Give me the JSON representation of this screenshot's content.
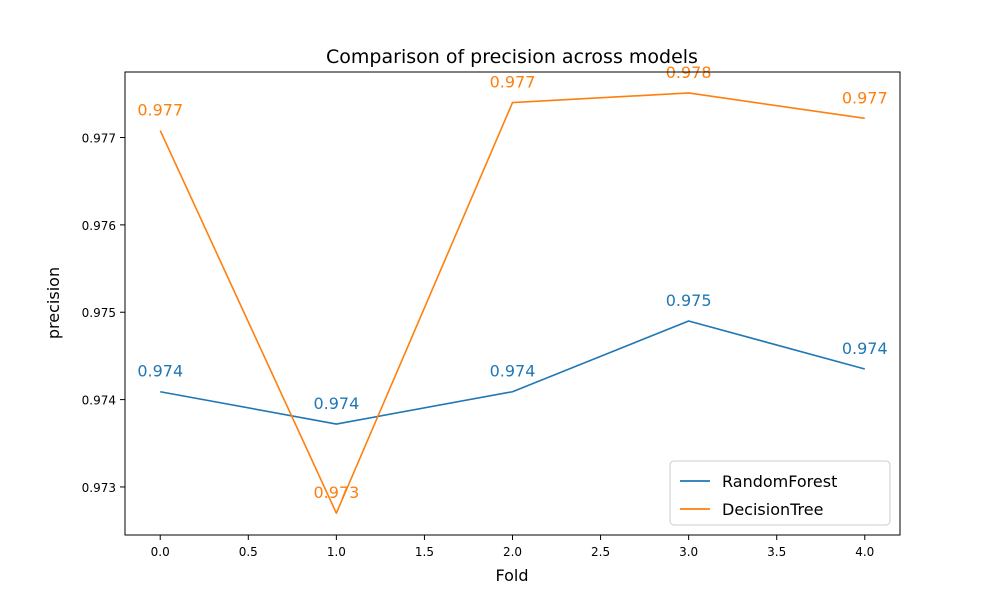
{
  "chart_data": {
    "type": "line",
    "title": "Comparison of precision across models",
    "xlabel": "Fold",
    "ylabel": "precision",
    "xlim": [
      -0.2,
      4.2
    ],
    "ylim": [
      0.97245,
      0.97775
    ],
    "x_ticks": [
      0.0,
      0.5,
      1.0,
      1.5,
      2.0,
      2.5,
      3.0,
      3.5,
      4.0
    ],
    "x_tick_labels": [
      "0.0",
      "0.5",
      "1.0",
      "1.5",
      "2.0",
      "2.5",
      "3.0",
      "3.5",
      "4.0"
    ],
    "y_ticks": [
      0.973,
      0.974,
      0.975,
      0.976,
      0.977
    ],
    "y_tick_labels": [
      "0.973",
      "0.974",
      "0.975",
      "0.976",
      "0.977"
    ],
    "grid": false,
    "legend_position": "bottom-right",
    "x": [
      0,
      1,
      2,
      3,
      4
    ],
    "series": [
      {
        "name": "RandomForest",
        "color": "#1f77b4",
        "values": [
          0.97409,
          0.97372,
          0.97409,
          0.9749,
          0.97435
        ],
        "labels": [
          "0.974",
          "0.974",
          "0.974",
          "0.975",
          "0.974"
        ]
      },
      {
        "name": "DecisionTree",
        "color": "#ff7f0e",
        "values": [
          0.97708,
          0.9727,
          0.9774,
          0.97751,
          0.97722
        ],
        "labels": [
          "0.977",
          "0.973",
          "0.977",
          "0.978",
          "0.977"
        ]
      }
    ]
  }
}
